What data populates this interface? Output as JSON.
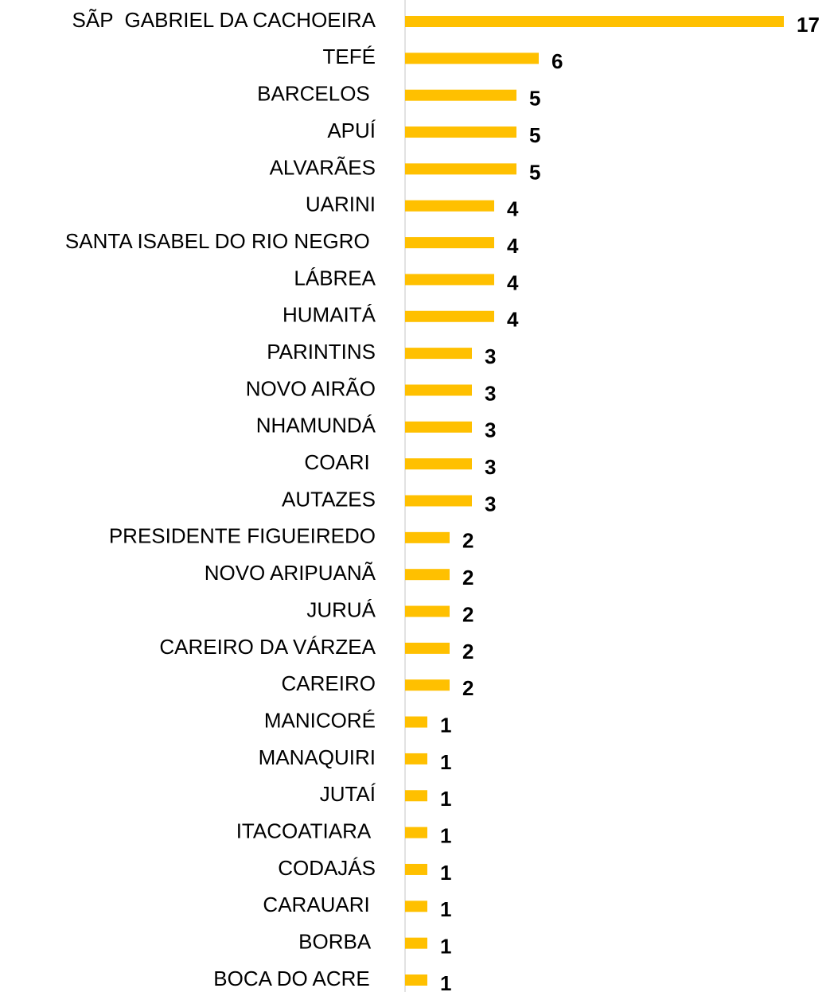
{
  "chart_data": {
    "type": "barh",
    "categories": [
      "SÃP  GABRIEL DA CACHOEIRA",
      "TEFÉ",
      "BARCELOS ",
      "APUÍ",
      "ALVARÃES",
      "UARINI",
      "SANTA ISABEL DO RIO NEGRO ",
      "LÁBREA",
      "HUMAITÁ",
      "PARINTINS",
      "NOVO AIRÃO",
      "NHAMUNDÁ",
      "COARI ",
      "AUTAZES",
      "PRESIDENTE FIGUEIREDO",
      "NOVO ARIPUANÃ",
      "JURUÁ",
      "CAREIRO DA VÁRZEA",
      "CAREIRO",
      "MANICORÉ",
      "MANAQUIRI",
      "JUTAÍ",
      "ITACOATIARA ",
      "CODAJÁS",
      "CARAUARI ",
      "BORBA ",
      "BOCA DO ACRE "
    ],
    "values": [
      17,
      6,
      5,
      5,
      5,
      4,
      4,
      4,
      4,
      3,
      3,
      3,
      3,
      3,
      2,
      2,
      2,
      2,
      2,
      1,
      1,
      1,
      1,
      1,
      1,
      1,
      1
    ],
    "color": "#ffc000",
    "xlim": [
      0,
      17
    ]
  }
}
